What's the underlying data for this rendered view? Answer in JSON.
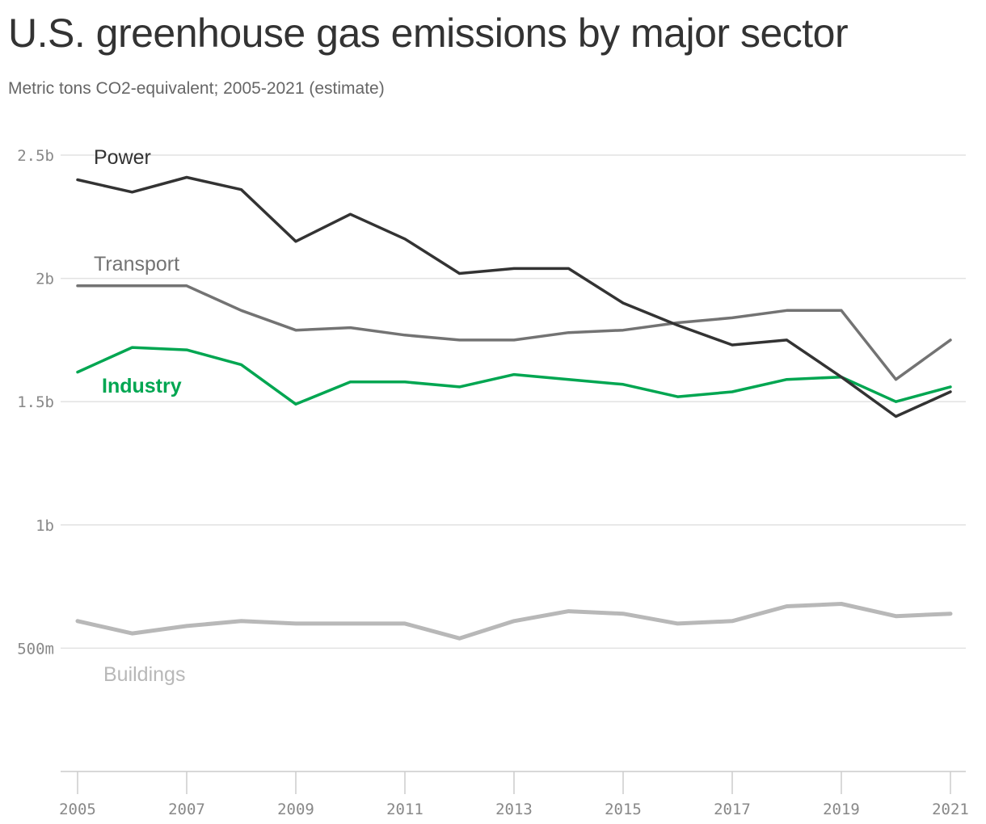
{
  "title": "U.S. greenhouse gas emissions by major sector",
  "subtitle": "Metric tons CO2-equivalent; 2005-2021 (estimate)",
  "colors": {
    "power": "#333333",
    "transport": "#737373",
    "industry": "#00a651",
    "buildings": "#b8b8b8",
    "grid": "#e2e2e2",
    "axis": "#cccccc",
    "tick": "#888888"
  },
  "chart_data": {
    "type": "line",
    "x": [
      2005,
      2006,
      2007,
      2008,
      2009,
      2010,
      2011,
      2012,
      2013,
      2014,
      2015,
      2016,
      2017,
      2018,
      2019,
      2020,
      2021
    ],
    "x_tick_labels": [
      "2005",
      "2007",
      "2009",
      "2011",
      "2013",
      "2015",
      "2017",
      "2019",
      "2021"
    ],
    "y_ticks": [
      {
        "value": 0.5,
        "label": "500m"
      },
      {
        "value": 1.0,
        "label": "1b"
      },
      {
        "value": 1.5,
        "label": "1.5b"
      },
      {
        "value": 2.0,
        "label": "2b"
      },
      {
        "value": 2.5,
        "label": "2.5b"
      }
    ],
    "ylim": [
      0.0,
      2.5
    ],
    "grid": true,
    "series": [
      {
        "name": "Power",
        "key": "power",
        "values": [
          2.4,
          2.35,
          2.41,
          2.36,
          2.15,
          2.26,
          2.16,
          2.02,
          2.04,
          2.04,
          1.9,
          1.81,
          1.73,
          1.75,
          1.6,
          1.44,
          1.54
        ]
      },
      {
        "name": "Transport",
        "key": "transport",
        "values": [
          1.97,
          1.97,
          1.97,
          1.87,
          1.79,
          1.8,
          1.77,
          1.75,
          1.75,
          1.78,
          1.79,
          1.82,
          1.84,
          1.87,
          1.87,
          1.59,
          1.75
        ]
      },
      {
        "name": "Industry",
        "key": "industry",
        "values": [
          1.62,
          1.72,
          1.71,
          1.65,
          1.49,
          1.58,
          1.58,
          1.56,
          1.61,
          1.59,
          1.57,
          1.52,
          1.54,
          1.59,
          1.6,
          1.5,
          1.56
        ]
      },
      {
        "name": "Buildings",
        "key": "buildings",
        "values": [
          0.61,
          0.56,
          0.59,
          0.61,
          0.6,
          0.6,
          0.6,
          0.54,
          0.61,
          0.65,
          0.64,
          0.6,
          0.61,
          0.67,
          0.68,
          0.63,
          0.64
        ]
      }
    ]
  }
}
